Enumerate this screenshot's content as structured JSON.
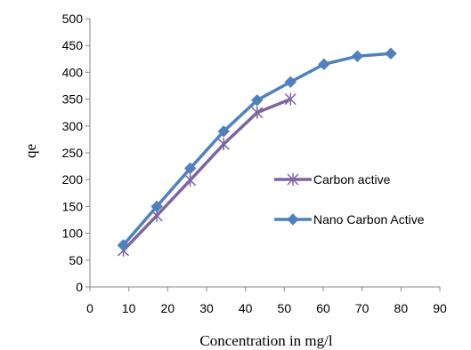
{
  "chart_data": {
    "type": "line",
    "title": "",
    "xlabel": "Concentration in mg/l",
    "ylabel": "qe",
    "xlim": [
      0,
      90
    ],
    "ylim": [
      0,
      500
    ],
    "xticks": [
      0,
      10,
      20,
      30,
      40,
      50,
      60,
      70,
      80,
      90
    ],
    "yticks": [
      0,
      50,
      100,
      150,
      200,
      250,
      300,
      350,
      400,
      450,
      500
    ],
    "grid": false,
    "legend_position": "right",
    "series": [
      {
        "name": "Carbon active",
        "color": "#8064A2",
        "marker": "star",
        "x": [
          8.6,
          17.2,
          25.8,
          34.4,
          43.0,
          51.6
        ],
        "y": [
          68,
          133,
          199,
          266,
          325,
          350
        ]
      },
      {
        "name": "Nano Carbon Active",
        "color": "#4F81BD",
        "marker": "diamond",
        "x": [
          8.6,
          17.2,
          25.8,
          34.4,
          43.0,
          51.6,
          60.2,
          68.8,
          77.4
        ],
        "y": [
          78,
          150,
          221,
          290,
          348,
          382,
          415,
          430,
          435
        ]
      }
    ]
  }
}
